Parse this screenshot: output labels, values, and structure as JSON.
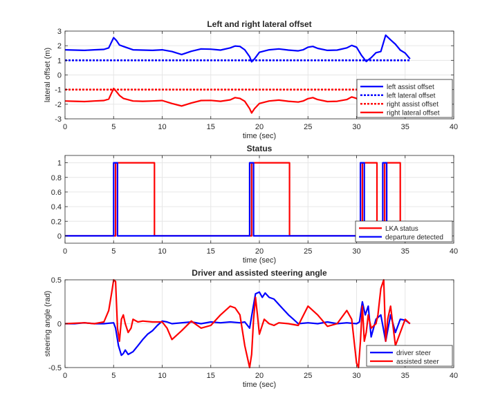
{
  "colors": {
    "blue": "#0000ff",
    "red": "#ff0000",
    "axis": "#262626",
    "grid": "#e6e6e6"
  },
  "chart_data": [
    {
      "type": "line",
      "title": "Left and right lateral offset",
      "xlabel": "time (sec)",
      "ylabel": "lateral offset (m)",
      "xlim": [
        0,
        40
      ],
      "ylim": [
        -3,
        3
      ],
      "xticks": [
        0,
        5,
        10,
        15,
        20,
        25,
        30,
        35,
        40
      ],
      "yticks": [
        -3,
        -2,
        -1,
        0,
        1,
        2,
        3
      ],
      "grid": true,
      "legend_position": "bottom-right",
      "series": [
        {
          "name": "left assist offset",
          "color": "#0000ff",
          "style": "solid",
          "x": [
            0,
            1,
            2,
            3,
            4,
            4.5,
            5,
            5.3,
            5.6,
            6,
            7,
            8,
            9,
            10,
            11,
            12,
            13,
            14,
            15,
            16,
            17,
            17.5,
            18,
            18.5,
            19,
            19.2,
            19.5,
            20,
            21,
            22,
            23,
            24,
            24.5,
            25,
            25.5,
            26,
            27,
            28,
            29,
            29.5,
            30,
            30.5,
            31,
            31.5,
            32,
            32.5,
            33,
            33.5,
            34,
            34.5,
            35,
            35.5
          ],
          "y": [
            1.72,
            1.7,
            1.68,
            1.72,
            1.75,
            1.85,
            2.55,
            2.35,
            2.05,
            1.95,
            1.72,
            1.7,
            1.68,
            1.72,
            1.6,
            1.4,
            1.62,
            1.78,
            1.76,
            1.7,
            1.85,
            1.98,
            1.95,
            1.72,
            1.25,
            0.9,
            1.1,
            1.55,
            1.72,
            1.78,
            1.7,
            1.65,
            1.72,
            1.9,
            1.95,
            1.82,
            1.68,
            1.7,
            1.85,
            2.02,
            1.9,
            1.35,
            0.92,
            1.18,
            1.52,
            1.6,
            2.72,
            2.4,
            2.1,
            1.7,
            1.5,
            1.1
          ]
        },
        {
          "name": "left lateral offset",
          "color": "#0000ff",
          "style": "dotted",
          "x": [
            0,
            35.5
          ],
          "y": [
            1,
            1
          ]
        },
        {
          "name": "right assist offset",
          "color": "#ff0000",
          "style": "dotted",
          "x": [
            0,
            35.5
          ],
          "y": [
            -1,
            -1
          ]
        },
        {
          "name": "right lateral offset",
          "color": "#ff0000",
          "style": "solid",
          "x": [
            0,
            1,
            2,
            3,
            4,
            4.5,
            5,
            5.3,
            5.6,
            6,
            7,
            8,
            9,
            10,
            11,
            12,
            13,
            14,
            15,
            16,
            17,
            17.5,
            18,
            18.5,
            19,
            19.2,
            19.5,
            20,
            21,
            22,
            23,
            24,
            24.5,
            25,
            25.5,
            26,
            27,
            28,
            29,
            29.5,
            30,
            30.5,
            31,
            31.5,
            32,
            32.5,
            33
          ],
          "y": [
            -1.78,
            -1.8,
            -1.82,
            -1.78,
            -1.75,
            -1.65,
            -0.92,
            -1.15,
            -1.4,
            -1.6,
            -1.78,
            -1.8,
            -1.78,
            -1.75,
            -1.95,
            -2.12,
            -1.92,
            -1.75,
            -1.74,
            -1.8,
            -1.7,
            -1.55,
            -1.6,
            -1.8,
            -2.3,
            -2.6,
            -2.3,
            -1.95,
            -1.78,
            -1.72,
            -1.8,
            -1.85,
            -1.78,
            -1.62,
            -1.55,
            -1.68,
            -1.82,
            -1.8,
            -1.68,
            -1.5,
            -1.6,
            -2.05,
            -2.55,
            -2.3,
            -1.98,
            -1.9,
            -0.85
          ]
        }
      ]
    },
    {
      "type": "line",
      "title": "Status",
      "xlabel": "time (sec)",
      "ylabel": "",
      "xlim": [
        0,
        40
      ],
      "ylim": [
        -0.1,
        1.1
      ],
      "xticks": [
        0,
        5,
        10,
        15,
        20,
        25,
        30,
        35,
        40
      ],
      "yticks": [
        0,
        0.2,
        0.4,
        0.6,
        0.8,
        1
      ],
      "grid": true,
      "legend_position": "bottom-right",
      "series": [
        {
          "name": "LKA status",
          "color": "#ff0000",
          "style": "step",
          "x": [
            0,
            5.2,
            5.2,
            9.2,
            9.2,
            19.2,
            19.2,
            23.1,
            23.1,
            30.6,
            30.6,
            32.1,
            32.1,
            32.9,
            32.9,
            34.5,
            34.5,
            35.5
          ],
          "y": [
            0,
            0,
            1,
            1,
            0,
            0,
            1,
            1,
            0,
            0,
            1,
            1,
            0,
            0,
            1,
            1,
            0,
            0
          ]
        },
        {
          "name": "departure detected",
          "color": "#0000ff",
          "style": "step",
          "x": [
            0,
            5.0,
            5.0,
            5.4,
            5.4,
            19.0,
            19.0,
            19.4,
            19.4,
            30.4,
            30.4,
            30.8,
            30.8,
            32.7,
            32.7,
            33.1,
            33.1,
            35.5
          ],
          "y": [
            0,
            0,
            1,
            1,
            0,
            0,
            1,
            1,
            0,
            0,
            1,
            1,
            0,
            0,
            1,
            1,
            0,
            0
          ]
        }
      ]
    },
    {
      "type": "line",
      "title": "Driver and assisted steering angle",
      "xlabel": "time (sec)",
      "ylabel": "steering angle (rad)",
      "xlim": [
        0,
        40
      ],
      "ylim": [
        -0.5,
        0.5
      ],
      "xticks": [
        0,
        5,
        10,
        15,
        20,
        25,
        30,
        35,
        40
      ],
      "yticks": [
        -0.5,
        0,
        0.5
      ],
      "grid": true,
      "legend_position": "bottom-right",
      "series": [
        {
          "name": "driver steer",
          "color": "#0000ff",
          "style": "solid",
          "x": [
            0,
            1,
            2,
            3,
            4,
            5,
            5.2,
            5.5,
            5.8,
            6,
            6.2,
            6.5,
            7,
            7.5,
            8,
            8.5,
            9,
            9.5,
            10,
            10.5,
            11,
            12,
            13,
            14,
            15,
            16,
            17,
            18,
            18.5,
            19,
            19.3,
            19.6,
            20,
            20.3,
            20.6,
            21,
            21.5,
            22,
            22.5,
            23,
            23.5,
            24,
            25,
            26,
            27,
            28,
            29,
            30,
            30.3,
            30.6,
            30.9,
            31.2,
            31.5,
            32,
            32.5,
            33,
            33.5,
            34,
            34.5,
            35,
            35.5
          ],
          "y": [
            0,
            0,
            0.01,
            0,
            0,
            0.01,
            -0.05,
            -0.25,
            -0.36,
            -0.34,
            -0.3,
            -0.35,
            -0.32,
            -0.25,
            -0.18,
            -0.12,
            -0.08,
            -0.02,
            0.03,
            0.02,
            0,
            0.01,
            0.02,
            0,
            0.02,
            0.01,
            0.02,
            0.01,
            0.02,
            -0.05,
            0.15,
            0.34,
            0.36,
            0.3,
            0.35,
            0.3,
            0.28,
            0.22,
            0.16,
            0.1,
            0.05,
            0,
            0.01,
            0,
            0.02,
            0,
            0.01,
            0,
            0.02,
            0.25,
            0.1,
            0.2,
            -0.15,
            0.05,
            0.1,
            -0.2,
            0.1,
            -0.1,
            0.05,
            0.04,
            0
          ]
        },
        {
          "name": "assisted steer",
          "color": "#ff0000",
          "style": "solid",
          "x": [
            0,
            2,
            3,
            4,
            4.5,
            4.8,
            5,
            5.2,
            5.4,
            5.6,
            5.8,
            6,
            6.2,
            6.5,
            6.8,
            7,
            7.5,
            8,
            9,
            10,
            10.5,
            11,
            12,
            13,
            14,
            15,
            16,
            17,
            17.5,
            18,
            18.5,
            19,
            19.2,
            19.4,
            19.6,
            19.8,
            20,
            20.2,
            20.5,
            21,
            21.5,
            22,
            23,
            24,
            25,
            26,
            27,
            28,
            29,
            29.5,
            30,
            30.2,
            30.4,
            30.6,
            30.8,
            31,
            31.2,
            31.5,
            32,
            32.2,
            32.5,
            32.8,
            33,
            33.2,
            33.5,
            34,
            34.5,
            35,
            35.5
          ],
          "y": [
            0,
            0.01,
            0,
            0.02,
            0.15,
            0.35,
            0.5,
            0.48,
            -0.05,
            -0.2,
            0.05,
            0.1,
            0,
            -0.1,
            -0.05,
            0.05,
            0.02,
            0.03,
            0.02,
            0.02,
            -0.05,
            -0.18,
            -0.08,
            0.03,
            -0.05,
            -0.02,
            0.1,
            0.2,
            0.18,
            0.1,
            -0.25,
            -0.5,
            -0.35,
            0.05,
            0.3,
            0.1,
            -0.12,
            -0.05,
            0.05,
            0,
            -0.02,
            0.01,
            0,
            -0.02,
            0.2,
            0.1,
            -0.03,
            0,
            0.15,
            0.05,
            -0.45,
            -0.5,
            -0.2,
            0.2,
            -0.2,
            -0.1,
            0.1,
            -0.05,
            0,
            0.1,
            0.4,
            0.5,
            -0.2,
            0.05,
            0.2,
            -0.25,
            -0.1,
            0.05,
            0
          ]
        }
      ]
    }
  ]
}
